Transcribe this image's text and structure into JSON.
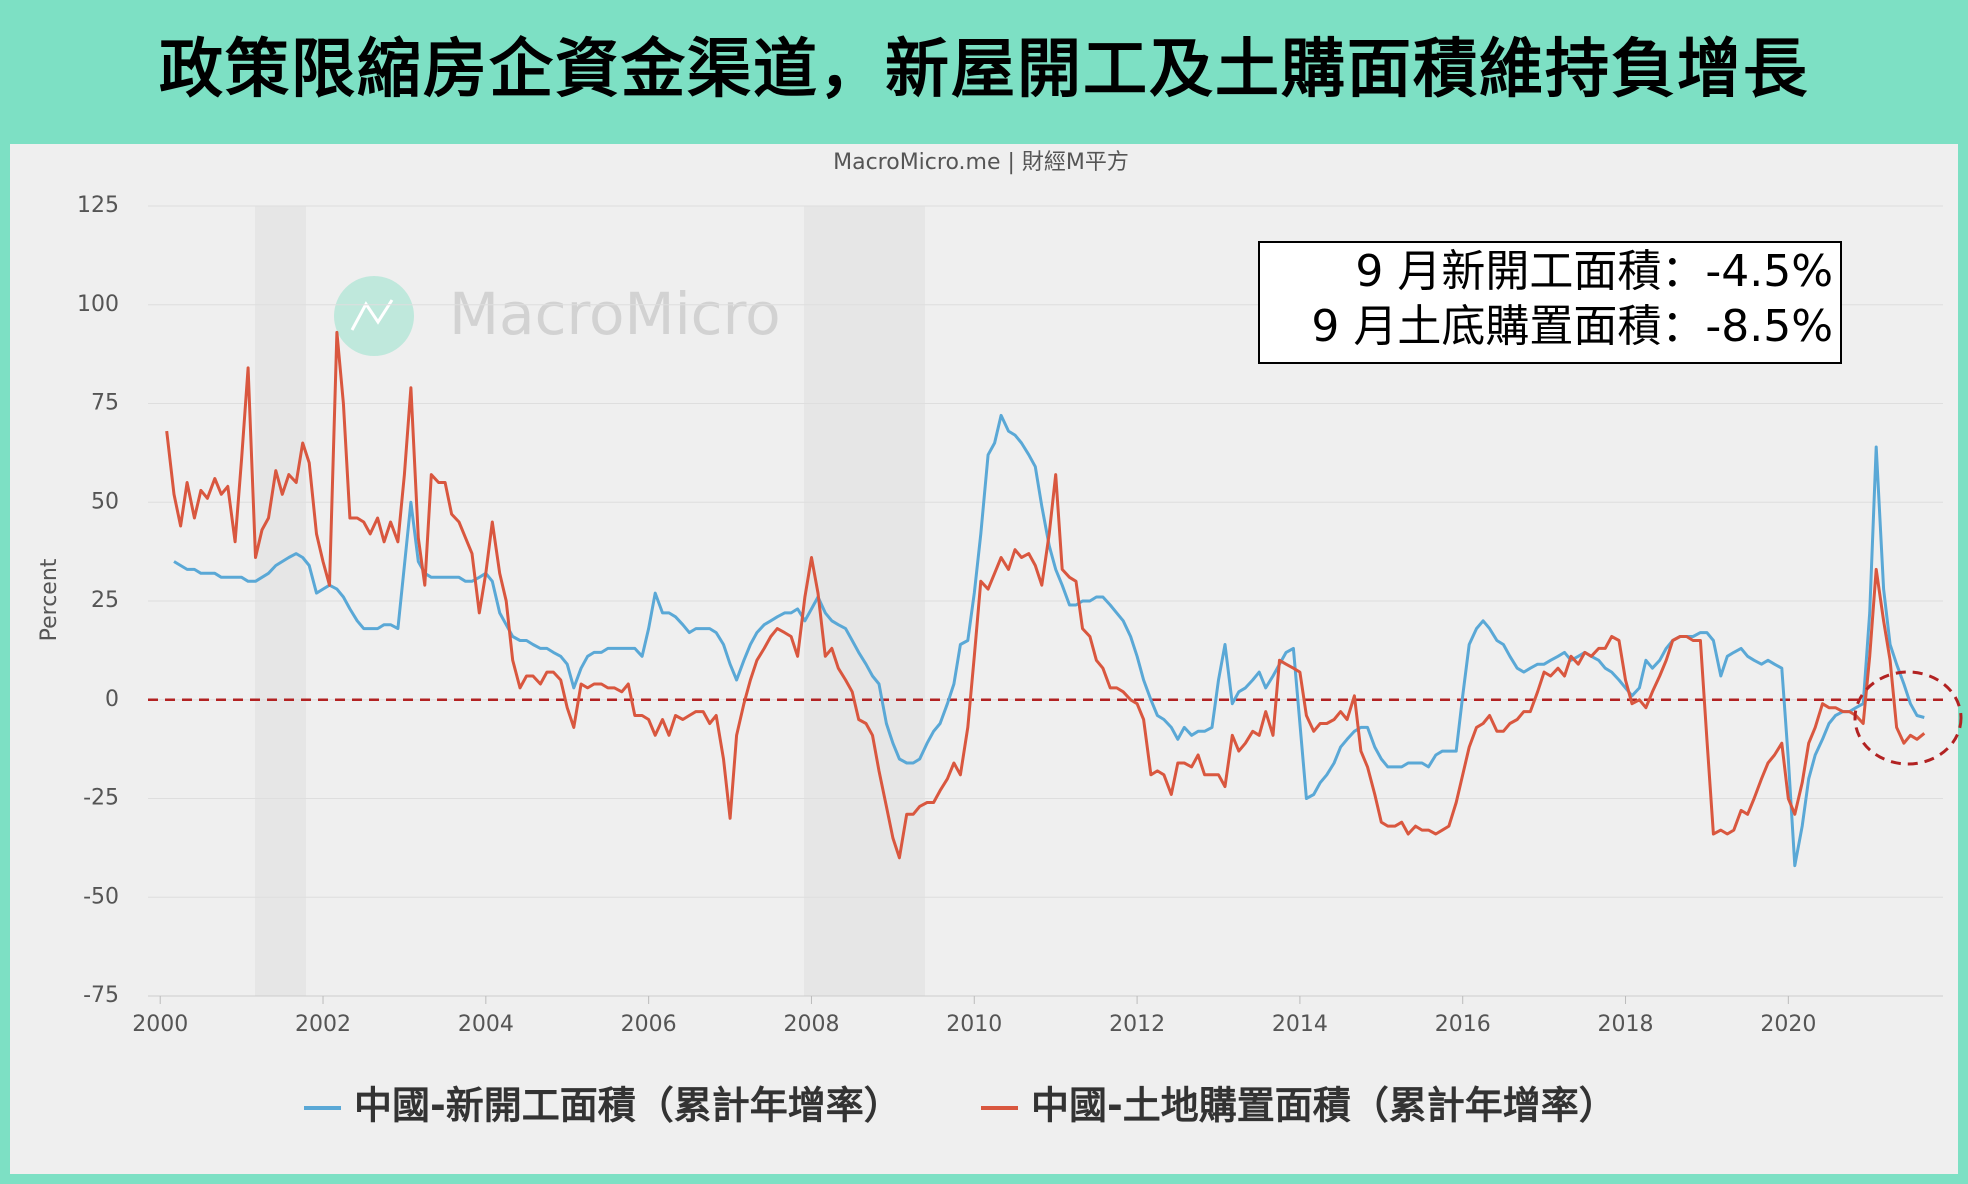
{
  "chart_data": {
    "type": "line",
    "title": "政策限縮房企資金渠道，新屋開工及土購面積維持負增長",
    "subtitle": "MacroMicro.me | 財經M平方",
    "watermark": "MacroMicro",
    "annotations": [
      "9 月新開工面積：-4.5%",
      "9 月土底購置面積：-8.5%"
    ],
    "y_label": "Percent",
    "xlim": [
      1999.85,
      2021.9
    ],
    "xticks": [
      2000,
      2002,
      2004,
      2006,
      2008,
      2010,
      2012,
      2014,
      2016,
      2018,
      2020
    ],
    "ylim": [
      -75,
      125
    ],
    "yticks": [
      -75,
      -50,
      -25,
      0,
      25,
      50,
      75,
      100,
      125
    ],
    "grid": true,
    "x": [
      2000.08,
      2000.17,
      2000.25,
      2000.33,
      2000.42,
      2000.5,
      2000.58,
      2000.67,
      2000.75,
      2000.83,
      2000.92,
      2001,
      2001.08,
      2001.17,
      2001.25,
      2001.33,
      2001.42,
      2001.5,
      2001.58,
      2001.67,
      2001.75,
      2001.83,
      2001.92,
      2002,
      2002.08,
      2002.17,
      2002.25,
      2002.33,
      2002.42,
      2002.5,
      2002.58,
      2002.67,
      2002.75,
      2002.83,
      2002.92,
      2003,
      2003.08,
      2003.17,
      2003.25,
      2003.33,
      2003.42,
      2003.5,
      2003.58,
      2003.67,
      2003.75,
      2003.83,
      2003.92,
      2004,
      2004.08,
      2004.17,
      2004.25,
      2004.33,
      2004.42,
      2004.5,
      2004.58,
      2004.67,
      2004.75,
      2004.83,
      2004.92,
      2005,
      2005.08,
      2005.17,
      2005.25,
      2005.33,
      2005.42,
      2005.5,
      2005.58,
      2005.67,
      2005.75,
      2005.83,
      2005.92,
      2006,
      2006.08,
      2006.17,
      2006.25,
      2006.33,
      2006.42,
      2006.5,
      2006.58,
      2006.67,
      2006.75,
      2006.83,
      2006.92,
      2007,
      2007.08,
      2007.17,
      2007.25,
      2007.33,
      2007.42,
      2007.5,
      2007.58,
      2007.67,
      2007.75,
      2007.83,
      2007.92,
      2008,
      2008.08,
      2008.17,
      2008.25,
      2008.33,
      2008.42,
      2008.5,
      2008.58,
      2008.67,
      2008.75,
      2008.83,
      2008.92,
      2009,
      2009.08,
      2009.17,
      2009.25,
      2009.33,
      2009.42,
      2009.5,
      2009.58,
      2009.67,
      2009.75,
      2009.83,
      2009.92,
      2010,
      2010.08,
      2010.17,
      2010.25,
      2010.33,
      2010.42,
      2010.5,
      2010.58,
      2010.67,
      2010.75,
      2010.83,
      2010.92,
      2011,
      2011.08,
      2011.17,
      2011.25,
      2011.33,
      2011.42,
      2011.5,
      2011.58,
      2011.67,
      2011.75,
      2011.83,
      2011.92,
      2012,
      2012.08,
      2012.17,
      2012.25,
      2012.33,
      2012.42,
      2012.5,
      2012.58,
      2012.67,
      2012.75,
      2012.83,
      2012.92,
      2013,
      2013.08,
      2013.17,
      2013.25,
      2013.33,
      2013.42,
      2013.5,
      2013.58,
      2013.67,
      2013.75,
      2013.83,
      2013.92,
      2014,
      2014.08,
      2014.17,
      2014.25,
      2014.33,
      2014.42,
      2014.5,
      2014.58,
      2014.67,
      2014.75,
      2014.83,
      2014.92,
      2015,
      2015.08,
      2015.17,
      2015.25,
      2015.33,
      2015.42,
      2015.5,
      2015.58,
      2015.67,
      2015.75,
      2015.83,
      2015.92,
      2016,
      2016.08,
      2016.17,
      2016.25,
      2016.33,
      2016.42,
      2016.5,
      2016.58,
      2016.67,
      2016.75,
      2016.83,
      2016.92,
      2017,
      2017.08,
      2017.17,
      2017.25,
      2017.33,
      2017.42,
      2017.5,
      2017.58,
      2017.67,
      2017.75,
      2017.83,
      2017.92,
      2018,
      2018.08,
      2018.17,
      2018.25,
      2018.33,
      2018.42,
      2018.5,
      2018.58,
      2018.67,
      2018.75,
      2018.83,
      2018.92,
      2019,
      2019.08,
      2019.17,
      2019.25,
      2019.33,
      2019.42,
      2019.5,
      2019.58,
      2019.67,
      2019.75,
      2019.83,
      2019.92,
      2020,
      2020.08,
      2020.17,
      2020.25,
      2020.33,
      2020.42,
      2020.5,
      2020.58,
      2020.67,
      2020.75,
      2020.83,
      2020.92,
      2021,
      2021.08,
      2021.17,
      2021.25,
      2021.33,
      2021.42,
      2021.5,
      2021.58,
      2021.67
    ],
    "series": [
      {
        "name": "中國-新開工面積（累計年增率）",
        "color": "#5aa8d6",
        "values": [
          null,
          35,
          34,
          33,
          33,
          32,
          32,
          32,
          31,
          31,
          31,
          31,
          30,
          30,
          31,
          32,
          34,
          35,
          36,
          37,
          36,
          34,
          27,
          28,
          29,
          28,
          26,
          23,
          20,
          18,
          18,
          18,
          19,
          19,
          18,
          34,
          50,
          35,
          32,
          31,
          31,
          31,
          31,
          31,
          30,
          30,
          31,
          32,
          30,
          22,
          19,
          16,
          15,
          15,
          14,
          13,
          13,
          12,
          11,
          9,
          3,
          8,
          11,
          12,
          12,
          13,
          13,
          13,
          13,
          13,
          11,
          18,
          27,
          22,
          22,
          21,
          19,
          17,
          18,
          18,
          18,
          17,
          14,
          9,
          5,
          10,
          14,
          17,
          19,
          20,
          21,
          22,
          22,
          23,
          20,
          23,
          26,
          22,
          20,
          19,
          18,
          15,
          12,
          9,
          6,
          4,
          -6,
          -11,
          -15,
          -16,
          -16,
          -15,
          -11,
          -8,
          -6,
          -1,
          4,
          14,
          15,
          27,
          42,
          62,
          65,
          72,
          68,
          67,
          65,
          62,
          59,
          49,
          39,
          33,
          29,
          24,
          24,
          25,
          25,
          26,
          26,
          24,
          22,
          20,
          16,
          11,
          5,
          0,
          -4,
          -5,
          -7,
          -10,
          -7,
          -9,
          -8,
          -8,
          -7,
          5,
          14,
          -1,
          2,
          3,
          5,
          7,
          3,
          6,
          9,
          12,
          13,
          -6,
          -25,
          -24,
          -21,
          -19,
          -16,
          -12,
          -10,
          -8,
          -7,
          -7,
          -12,
          -15,
          -17,
          -17,
          -17,
          -16,
          -16,
          -16,
          -17,
          -14,
          -13,
          -13,
          -13,
          1,
          14,
          18,
          20,
          18,
          15,
          14,
          11,
          8,
          7,
          8,
          9,
          9,
          10,
          11,
          12,
          10,
          11,
          12,
          11,
          10,
          8,
          7,
          5,
          3,
          1,
          3,
          10,
          8,
          10,
          13,
          15,
          16,
          16,
          16,
          17,
          17,
          15,
          6,
          11,
          12,
          13,
          11,
          10,
          9,
          10,
          9,
          8,
          -15,
          -42,
          -32,
          -20,
          -14,
          -10,
          -6,
          -4,
          -3,
          -3,
          -2,
          -1,
          22,
          64,
          28,
          14,
          9,
          4,
          -1,
          -4,
          -4.5
        ]
      },
      {
        "name": "中國-土地購置面積（累計年增率）",
        "color": "#d9573f",
        "values": [
          68,
          52,
          44,
          55,
          46,
          53,
          51,
          56,
          52,
          54,
          40,
          61,
          84,
          36,
          43,
          46,
          58,
          52,
          57,
          55,
          65,
          60,
          42,
          35,
          29,
          93,
          75,
          46,
          46,
          45,
          42,
          46,
          40,
          45,
          40,
          57,
          79,
          41,
          29,
          57,
          55,
          55,
          47,
          45,
          41,
          37,
          22,
          32,
          45,
          32,
          25,
          10,
          3,
          6,
          6,
          4,
          7,
          7,
          5,
          -2,
          -7,
          4,
          3,
          4,
          4,
          3,
          3,
          2,
          4,
          -4,
          -4,
          -5,
          -9,
          -5,
          -9,
          -4,
          -5,
          -4,
          -3,
          -3,
          -6,
          -4,
          -15,
          -30,
          -9,
          -1,
          5,
          10,
          13,
          16,
          18,
          17,
          16,
          11,
          26,
          36,
          27,
          11,
          13,
          8,
          5,
          2,
          -5,
          -6,
          -9,
          -18,
          -27,
          -35,
          -40,
          -29,
          -29,
          -27,
          -26,
          -26,
          -23,
          -20,
          -16,
          -19,
          -7,
          11,
          30,
          28,
          32,
          36,
          33,
          38,
          36,
          37,
          34,
          29,
          42,
          57,
          33,
          31,
          30,
          18,
          16,
          10,
          8,
          3,
          3,
          2,
          0,
          -1,
          -5,
          -19,
          -18,
          -19,
          -24,
          -16,
          -16,
          -17,
          -14,
          -19,
          -19,
          -19,
          -22,
          -9,
          -13,
          -11,
          -8,
          -9,
          -3,
          -9,
          10,
          9,
          8,
          7,
          -4,
          -8,
          -6,
          -6,
          -5,
          -3,
          -5,
          1,
          -13,
          -17,
          -24,
          -31,
          -32,
          -32,
          -31,
          -34,
          -32,
          -33,
          -33,
          -34,
          -33,
          -32,
          -26,
          -19,
          -12,
          -7,
          -6,
          -4,
          -8,
          -8,
          -6,
          -5,
          -3,
          -3,
          2,
          7,
          6,
          8,
          6,
          11,
          9,
          12,
          11,
          13,
          13,
          16,
          15,
          5,
          -1,
          0,
          -2,
          2,
          6,
          10,
          15,
          16,
          16,
          15,
          15,
          -10,
          -34,
          -33,
          -34,
          -33,
          -28,
          -29,
          -25,
          -20,
          -16,
          -14,
          -11,
          -25,
          -29,
          -21,
          -11,
          -7,
          -1,
          -2,
          -2,
          -3,
          -3,
          -4,
          -6,
          11,
          33,
          20,
          10,
          -7,
          -11,
          -9,
          -10,
          -8.5
        ]
      }
    ]
  }
}
